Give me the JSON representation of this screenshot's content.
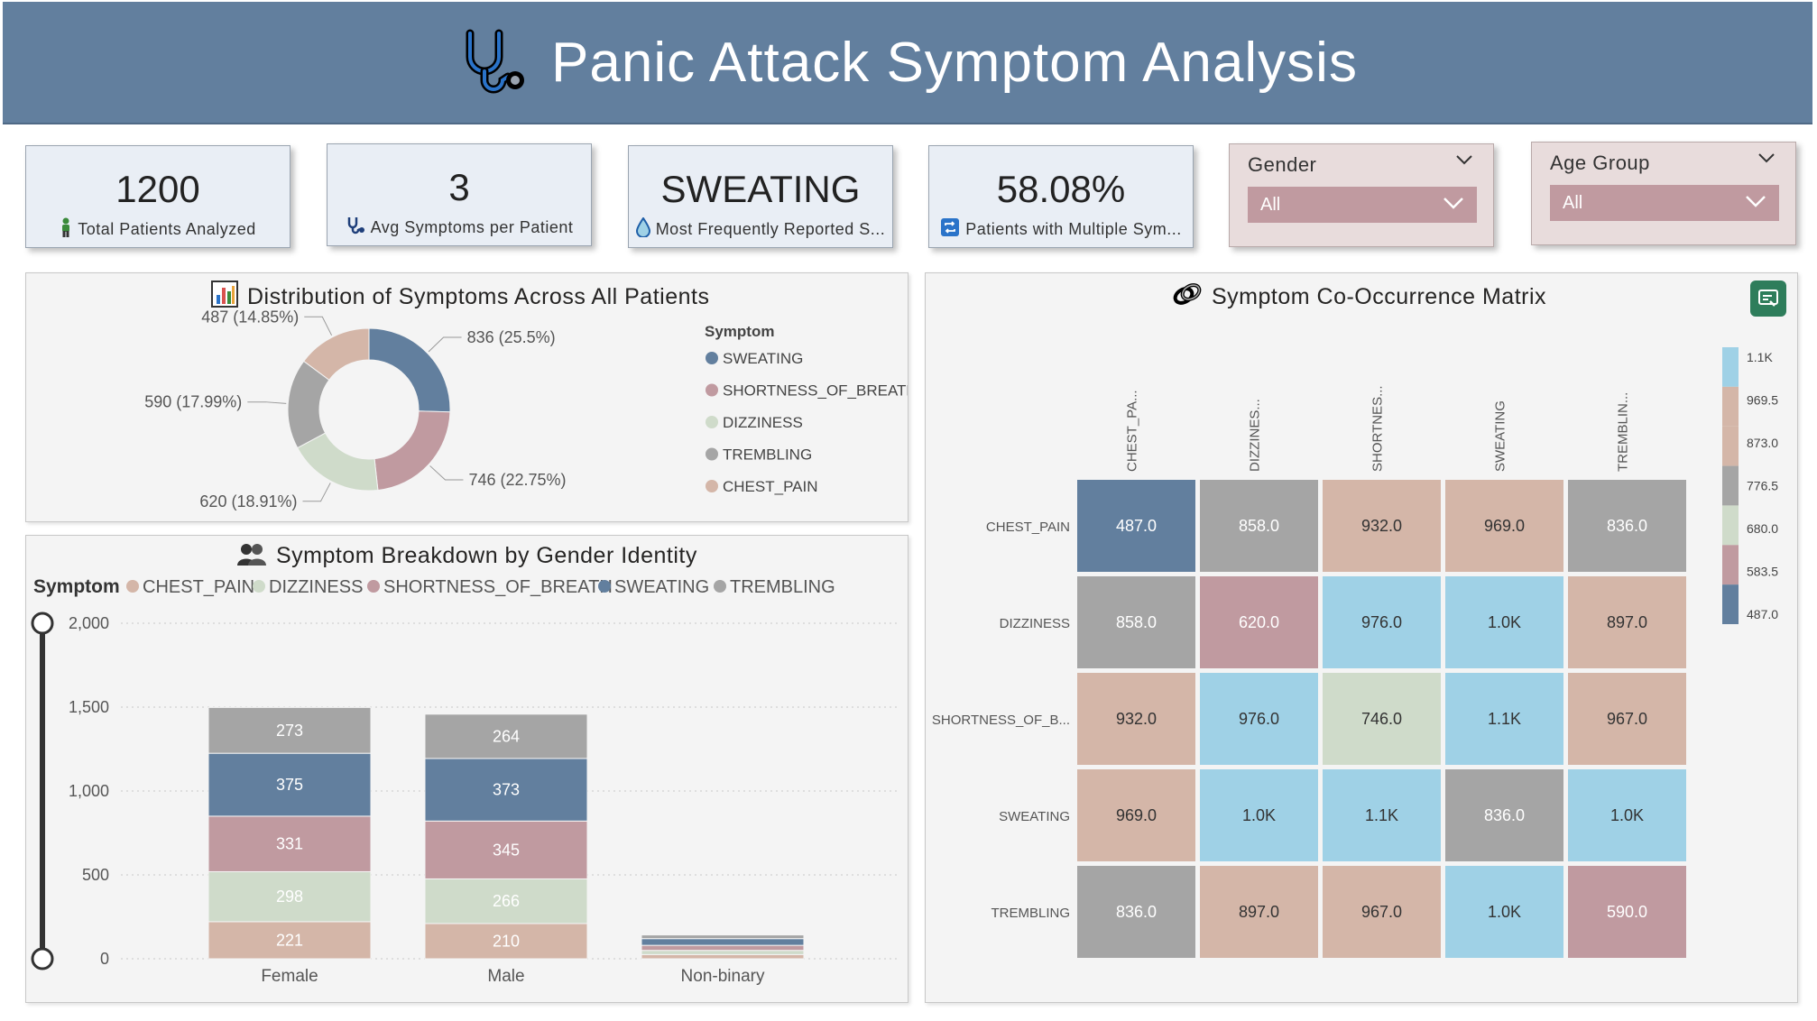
{
  "header": {
    "title": "Panic Attack Symptom Analysis",
    "icon": "stethoscope-icon"
  },
  "kpis": [
    {
      "value": "1200",
      "label": "Total Patients Analyzed",
      "icon": "person-icon"
    },
    {
      "value": "3",
      "label": "Avg Symptoms per Patient",
      "icon": "stethoscope-icon"
    },
    {
      "value": "SWEATING",
      "label": "Most Frequently Reported S...",
      "icon": "drop-icon"
    },
    {
      "value": "58.08%",
      "label": "Patients with Multiple Sym...",
      "icon": "repeat-icon"
    }
  ],
  "slicers": [
    {
      "title": "Gender",
      "value": "All"
    },
    {
      "title": "Age Group",
      "value": "All"
    }
  ],
  "colors": {
    "SWEATING": "#627f9e",
    "SHORTNESS_OF_BREATH": "#c09aa0",
    "DIZZINESS": "#cfdbca",
    "TREMBLING": "#a5a5a5",
    "CHEST_PAIN": "#d4b6a8"
  },
  "chart_data": [
    {
      "type": "pie",
      "title": "Distribution of Symptoms Across All Patients",
      "legend_title": "Symptom",
      "legend_position": "right",
      "slices": [
        {
          "name": "SWEATING",
          "value": 836,
          "label": "836 (25.5%)"
        },
        {
          "name": "SHORTNESS_OF_BREATH",
          "value": 746,
          "label": "746 (22.75%)"
        },
        {
          "name": "DIZZINESS",
          "value": 620,
          "label": "620 (18.91%)"
        },
        {
          "name": "TREMBLING",
          "value": 590,
          "label": "590 (17.99%)"
        },
        {
          "name": "CHEST_PAIN",
          "value": 487,
          "label": "487 (14.85%)"
        }
      ]
    },
    {
      "type": "bar",
      "stacked": true,
      "title": "Symptom Breakdown by Gender Identity",
      "legend_title": "Symptom",
      "legend_position": "top-left",
      "categories": [
        "Female",
        "Male",
        "Non-binary"
      ],
      "ylim": [
        0,
        2000
      ],
      "yticks": [
        "0",
        "500",
        "1,000",
        "1,500",
        "2,000"
      ],
      "grid": true,
      "series": [
        {
          "name": "CHEST_PAIN",
          "values": [
            221,
            210,
            25
          ]
        },
        {
          "name": "DIZZINESS",
          "values": [
            298,
            266,
            25
          ]
        },
        {
          "name": "SHORTNESS_OF_BREATH",
          "values": [
            331,
            345,
            30
          ]
        },
        {
          "name": "SWEATING",
          "values": [
            375,
            373,
            40
          ]
        },
        {
          "name": "TREMBLING",
          "values": [
            273,
            264,
            22
          ]
        }
      ],
      "legend_order": [
        "CHEST_PAIN",
        "DIZZINESS",
        "SHORTNESS_OF_BREATH",
        "SWEATING",
        "TREMBLING"
      ]
    },
    {
      "type": "heatmap",
      "title": "Symptom Co-Occurrence Matrix",
      "columns": [
        "CHEST_PA...",
        "DIZZINES...",
        "SHORTNES...",
        "SWEATING",
        "TREMBLIN..."
      ],
      "rows": [
        "CHEST_PAIN",
        "DIZZINESS",
        "SHORTNESS_OF_B...",
        "SWEATING",
        "TREMBLING"
      ],
      "values": [
        [
          487,
          858,
          932,
          969,
          836
        ],
        [
          858,
          620,
          976,
          1000,
          897
        ],
        [
          932,
          976,
          746,
          1100,
          967
        ],
        [
          969,
          1000,
          1100,
          836,
          1000
        ],
        [
          836,
          897,
          967,
          1000,
          590
        ]
      ],
      "labels": [
        [
          "487.0",
          "858.0",
          "932.0",
          "969.0",
          "836.0"
        ],
        [
          "858.0",
          "620.0",
          "976.0",
          "1.0K",
          "897.0"
        ],
        [
          "932.0",
          "976.0",
          "746.0",
          "1.1K",
          "967.0"
        ],
        [
          "969.0",
          "1.0K",
          "1.1K",
          "836.0",
          "1.0K"
        ],
        [
          "836.0",
          "897.0",
          "967.0",
          "1.0K",
          "590.0"
        ]
      ],
      "cell_colors": [
        [
          "#627f9e",
          "#a5a5a5",
          "#d4b6a8",
          "#d4b6a8",
          "#a5a5a5"
        ],
        [
          "#a5a5a5",
          "#c09aa0",
          "#9fd1e6",
          "#9fd1e6",
          "#d4b6a8"
        ],
        [
          "#d4b6a8",
          "#9fd1e6",
          "#cfdbca",
          "#9fd1e6",
          "#d4b6a8"
        ],
        [
          "#d4b6a8",
          "#9fd1e6",
          "#9fd1e6",
          "#a5a5a5",
          "#9fd1e6"
        ],
        [
          "#a5a5a5",
          "#d4b6a8",
          "#d4b6a8",
          "#9fd1e6",
          "#c09aa0"
        ]
      ],
      "scale": {
        "labels": [
          "1.1K",
          "969.5",
          "873.0",
          "776.5",
          "680.0",
          "583.5",
          "487.0"
        ],
        "colors": [
          "#9fd1e6",
          "#d4b6a8",
          "#d4b6a8",
          "#a5a5a5",
          "#cfdbca",
          "#c09aa0",
          "#627f9e"
        ]
      }
    }
  ]
}
